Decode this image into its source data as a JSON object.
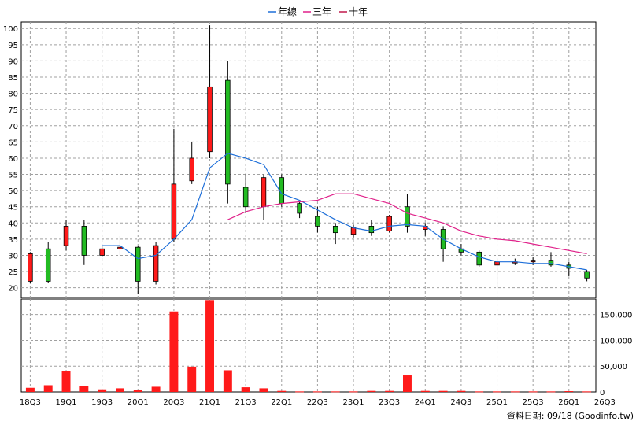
{
  "chart_data": [
    {
      "type": "candlestick",
      "legend": [
        {
          "name": "年線",
          "color": "#1e6fd9"
        },
        {
          "name": "三年",
          "color": "#e0218a"
        },
        {
          "name": "十年",
          "color": "#c0184a"
        }
      ],
      "ylim": [
        17,
        102
      ],
      "yticks": [
        20,
        25,
        30,
        35,
        40,
        45,
        50,
        55,
        60,
        65,
        70,
        75,
        80,
        85,
        90,
        95,
        100
      ],
      "colors": {
        "up": "#ff1a1a",
        "down": "#22bb22"
      },
      "candles": [
        {
          "open": 22,
          "close": 30.5,
          "high": 31,
          "low": 21.5
        },
        {
          "open": 32,
          "close": 22,
          "high": 34,
          "low": 21.5
        },
        {
          "open": 33,
          "close": 39,
          "high": 41,
          "low": 31.5
        },
        {
          "open": 39,
          "close": 30,
          "high": 41,
          "low": 27
        },
        {
          "open": 30,
          "close": 32,
          "high": 33,
          "low": 29.5
        },
        {
          "open": 32,
          "close": 32.5,
          "high": 36,
          "low": 30
        },
        {
          "open": 32.5,
          "close": 22,
          "high": 33,
          "low": 18
        },
        {
          "open": 22,
          "close": 33,
          "high": 34,
          "low": 21
        },
        {
          "open": 35,
          "close": 52,
          "high": 69,
          "low": 34
        },
        {
          "open": 53,
          "close": 60,
          "high": 65,
          "low": 52
        },
        {
          "open": 62,
          "close": 82,
          "high": 101,
          "low": 60
        },
        {
          "open": 84,
          "close": 52,
          "high": 90,
          "low": 46
        },
        {
          "open": 51,
          "close": 45,
          "high": 55,
          "low": 43
        },
        {
          "open": 45,
          "close": 54,
          "high": 55,
          "low": 41
        },
        {
          "open": 54,
          "close": 46,
          "high": 55,
          "low": 45
        },
        {
          "open": 46,
          "close": 43,
          "high": 47,
          "low": 41.5
        },
        {
          "open": 42,
          "close": 39,
          "high": 45,
          "low": 37
        },
        {
          "open": 39,
          "close": 37,
          "high": 40,
          "low": 33.5
        },
        {
          "open": 36.5,
          "close": 38.5,
          "high": 39.5,
          "low": 35.5
        },
        {
          "open": 39,
          "close": 37,
          "high": 41,
          "low": 36
        },
        {
          "open": 37.5,
          "close": 42,
          "high": 42.5,
          "low": 37
        },
        {
          "open": 45,
          "close": 39,
          "high": 49,
          "low": 37
        },
        {
          "open": 38,
          "close": 39,
          "high": 40,
          "low": 36
        },
        {
          "open": 38,
          "close": 32,
          "high": 39,
          "low": 28
        },
        {
          "open": 32,
          "close": 31,
          "high": 33.5,
          "low": 30
        },
        {
          "open": 31,
          "close": 27,
          "high": 31.5,
          "low": 26.5
        },
        {
          "open": 27,
          "close": 28,
          "high": 29,
          "low": 20
        },
        {
          "open": 28,
          "close": 28,
          "high": 29,
          "low": 27
        },
        {
          "open": 28,
          "close": 28.5,
          "high": 29.5,
          "low": 27
        },
        {
          "open": 28.5,
          "close": 27,
          "high": 31,
          "low": 26.5
        },
        {
          "open": 27,
          "close": 26,
          "high": 28,
          "low": 23.5
        },
        {
          "open": 25,
          "close": 23,
          "high": 25.5,
          "low": 22
        }
      ],
      "lines": [
        {
          "name": "年線",
          "color": "#1e6fd9",
          "values": [
            null,
            null,
            null,
            null,
            33,
            33,
            29,
            30,
            35,
            41,
            57,
            61.5,
            60,
            58,
            49,
            47,
            44,
            41,
            38.5,
            37.5,
            39,
            39.5,
            39,
            35,
            32,
            29.5,
            28,
            28,
            27.5,
            27.5,
            26.5,
            25.5
          ]
        },
        {
          "name": "三年",
          "color": "#e0218a",
          "values": [
            null,
            null,
            null,
            null,
            null,
            null,
            null,
            null,
            null,
            null,
            null,
            41,
            43.5,
            45,
            46,
            46.5,
            47,
            49,
            49,
            47.5,
            46,
            43,
            41.5,
            40,
            37.5,
            36,
            35,
            34.5,
            33.5,
            32.5,
            31.5,
            30.5
          ]
        }
      ]
    },
    {
      "type": "bar",
      "yticks": [
        0,
        50000,
        100000,
        150000
      ],
      "ytick_labels": [
        "0",
        "50,000",
        "100,000",
        "150,000"
      ],
      "ylim": [
        0,
        180000
      ],
      "color": "#ff1a1a",
      "values": [
        8000,
        13000,
        40000,
        12000,
        5000,
        7000,
        4000,
        10000,
        156000,
        49000,
        178000,
        42000,
        9000,
        7000,
        2000,
        1000,
        1000,
        1000,
        1000,
        2000,
        2000,
        32000,
        2000,
        2000,
        2000,
        1000,
        1000,
        1000,
        1000,
        1000,
        1500,
        1000
      ]
    }
  ],
  "x_labels": [
    "18Q3",
    "19Q1",
    "19Q3",
    "20Q1",
    "20Q3",
    "21Q1",
    "21Q3",
    "22Q1",
    "22Q3",
    "23Q1",
    "23Q3",
    "24Q1",
    "24Q3",
    "25Q1",
    "25Q3",
    "26Q1",
    "26Q3"
  ],
  "footer": "資料日期: 09/18  (Goodinfo.tw)"
}
